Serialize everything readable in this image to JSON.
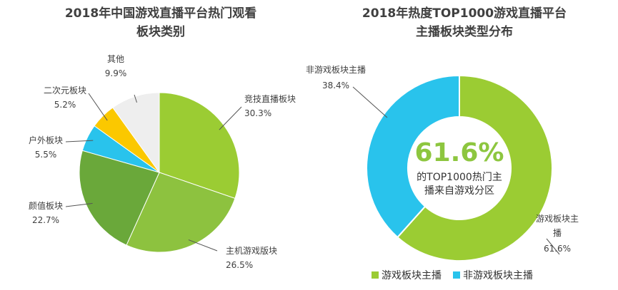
{
  "chart_data": [
    {
      "type": "pie",
      "title_line1": "2018年中国游戏直播平台热门观看",
      "title_line2": "板块类别",
      "slices": [
        {
          "label": "竞技直播板块",
          "value": 30.3,
          "value_label": "30.3%",
          "color": "#9bcc33"
        },
        {
          "label": "主机游戏版块",
          "value": 26.5,
          "value_label": "26.5%",
          "color": "#8dc23f"
        },
        {
          "label": "颜值板块",
          "value": 22.7,
          "value_label": "22.7%",
          "color": "#6aa83a"
        },
        {
          "label": "户外板块",
          "value": 5.5,
          "value_label": "5.5%",
          "color": "#29c3ec"
        },
        {
          "label": "二次元板块",
          "value": 5.2,
          "value_label": "5.2%",
          "color": "#fbc800"
        },
        {
          "label": "其他",
          "value": 9.9,
          "value_label": "9.9%",
          "color": "#eeeeee"
        }
      ]
    },
    {
      "type": "donut",
      "title_line1": "2018年热度TOP1000游戏直播平台",
      "title_line2": "主播板块类型分布",
      "center_value": "61.6%",
      "center_text_line1": "的TOP1000热门主",
      "center_text_line2": "播来自游戏分区",
      "slices": [
        {
          "label_line1": "游戏板块主",
          "label_line2": "播",
          "value": 61.6,
          "value_label": "61.6%",
          "color": "#9bcc33"
        },
        {
          "label_line1": "非游戏板块主播",
          "label_line2": "",
          "value": 38.4,
          "value_label": "38.4%",
          "color": "#29c3ec"
        }
      ],
      "legend": [
        {
          "label": "游戏板块主播",
          "color": "#9bcc33"
        },
        {
          "label": "非游戏板块主播",
          "color": "#29c3ec"
        }
      ]
    }
  ]
}
